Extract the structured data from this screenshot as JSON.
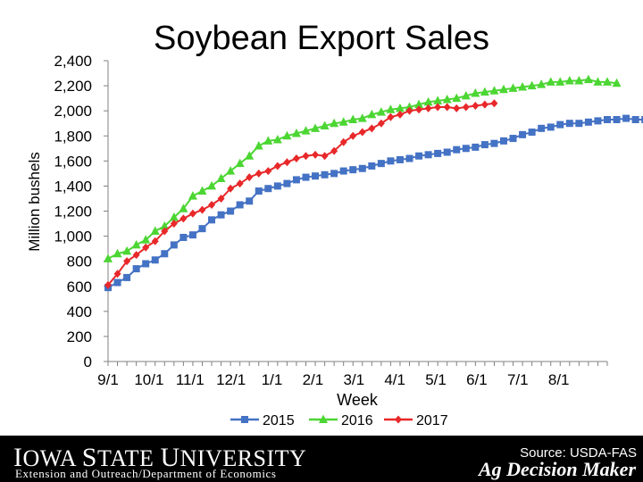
{
  "slide": {
    "title": "Soybean Export Sales",
    "source": "Source: USDA-FAS",
    "footer_university": "Iowa State University",
    "footer_department": "Extension and Outreach/Department of Economics",
    "footer_brand": "Ag Decision Maker"
  },
  "colors": {
    "s2015": "#4472c4",
    "s2016": "#4cd633",
    "s2017": "#e8282a",
    "axis": "#808080",
    "footer_bg": "#000000"
  },
  "chart_data": {
    "type": "line",
    "title": "Soybean Export Sales",
    "xlabel": "Week",
    "ylabel": "Million bushels",
    "ylim": [
      0,
      2400
    ],
    "yticks": [
      "0",
      "200",
      "400",
      "600",
      "800",
      "1,000",
      "1,200",
      "1,400",
      "1,600",
      "1,800",
      "2,000",
      "2,200",
      "2,400"
    ],
    "xticks": [
      "9/1",
      "10/1",
      "11/1",
      "12/1",
      "1/1",
      "2/1",
      "3/1",
      "4/1",
      "5/1",
      "6/1",
      "7/1",
      "8/1"
    ],
    "x_unit": "week of marketing year beginning 9/1",
    "grid": false,
    "legend_position": "bottom",
    "series": [
      {
        "name": "2015",
        "marker": "square",
        "color": "#4472c4",
        "values": [
          590,
          630,
          670,
          740,
          780,
          810,
          860,
          930,
          990,
          1010,
          1060,
          1130,
          1170,
          1200,
          1250,
          1280,
          1360,
          1380,
          1400,
          1420,
          1450,
          1470,
          1480,
          1490,
          1500,
          1520,
          1530,
          1540,
          1560,
          1580,
          1600,
          1610,
          1620,
          1640,
          1650,
          1660,
          1670,
          1690,
          1700,
          1710,
          1730,
          1740,
          1760,
          1780,
          1810,
          1830,
          1860,
          1870,
          1890,
          1900,
          1900,
          1910,
          1920,
          1930,
          1930,
          1940,
          1930,
          1930
        ]
      },
      {
        "name": "2016",
        "marker": "triangle",
        "color": "#4cd633",
        "values": [
          820,
          860,
          880,
          930,
          970,
          1040,
          1080,
          1150,
          1220,
          1320,
          1360,
          1400,
          1460,
          1520,
          1580,
          1640,
          1720,
          1760,
          1770,
          1800,
          1820,
          1840,
          1860,
          1880,
          1900,
          1910,
          1930,
          1940,
          1970,
          1990,
          2010,
          2020,
          2030,
          2050,
          2070,
          2080,
          2090,
          2100,
          2120,
          2140,
          2150,
          2160,
          2170,
          2180,
          2190,
          2200,
          2210,
          2230,
          2230,
          2240,
          2240,
          2250,
          2230,
          2230,
          2220
        ]
      },
      {
        "name": "2017",
        "marker": "diamond",
        "color": "#e8282a",
        "values": [
          610,
          700,
          800,
          850,
          910,
          960,
          1040,
          1100,
          1140,
          1180,
          1210,
          1250,
          1300,
          1380,
          1420,
          1470,
          1500,
          1520,
          1560,
          1590,
          1620,
          1640,
          1650,
          1640,
          1680,
          1750,
          1800,
          1830,
          1860,
          1900,
          1950,
          1970,
          2000,
          2010,
          2020,
          2030,
          2030,
          2020,
          2030,
          2040,
          2050,
          2060
        ]
      }
    ]
  }
}
